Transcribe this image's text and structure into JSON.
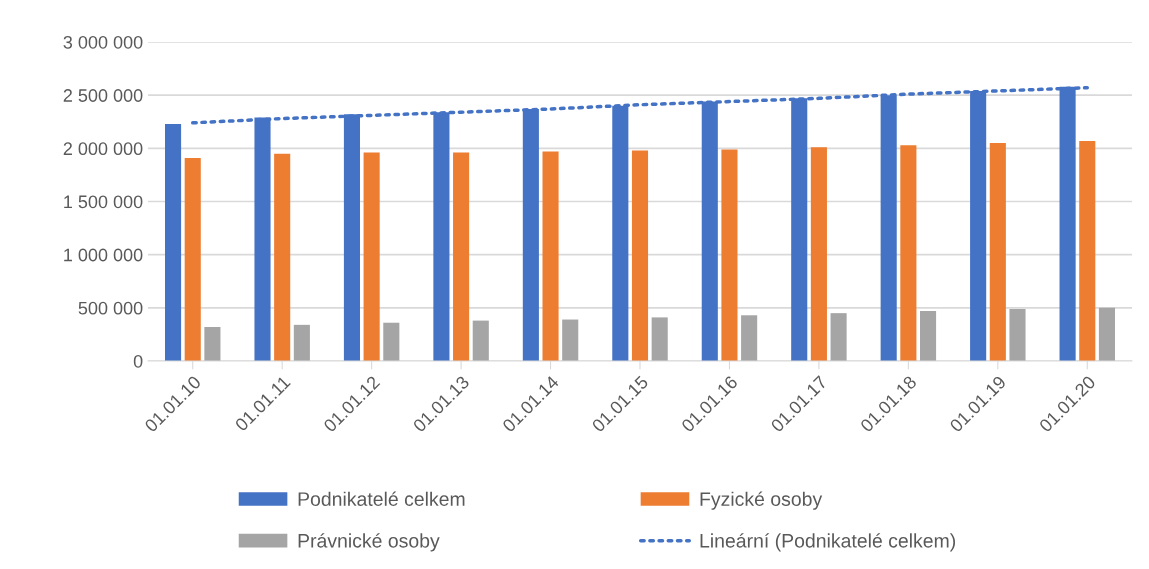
{
  "chart_data": {
    "type": "bar",
    "categories": [
      "01.01.10",
      "01.01.11",
      "01.01.12",
      "01.01.13",
      "01.01.14",
      "01.01.15",
      "01.01.16",
      "01.01.17",
      "01.01.18",
      "01.01.19",
      "01.01.20"
    ],
    "series": [
      {
        "name": "Podnikatelé celkem",
        "color": "#4472c4",
        "values": [
          2230000,
          2290000,
          2320000,
          2340000,
          2370000,
          2400000,
          2440000,
          2470000,
          2500000,
          2540000,
          2580000
        ]
      },
      {
        "name": "Fyzické osoby",
        "color": "#ed7d31",
        "values": [
          1910000,
          1950000,
          1960000,
          1960000,
          1970000,
          1980000,
          1990000,
          2010000,
          2030000,
          2050000,
          2070000
        ]
      },
      {
        "name": "Právnické osoby",
        "color": "#a5a5a5",
        "values": [
          320000,
          340000,
          360000,
          380000,
          390000,
          410000,
          430000,
          450000,
          470000,
          490000,
          500000
        ]
      },
      {
        "name": "Lineární (Podnikatelé celkem)",
        "type": "line",
        "line_style": "dotted",
        "color": "#4472c4",
        "values": [
          2240000,
          2280000,
          2310000,
          2340000,
          2370000,
          2410000,
          2440000,
          2470000,
          2510000,
          2540000,
          2570000
        ]
      }
    ],
    "ylim": [
      0,
      3000000
    ],
    "yticks": [
      {
        "value": 0,
        "label": "0"
      },
      {
        "value": 500000,
        "label": "500 000"
      },
      {
        "value": 1000000,
        "label": "1 000 000"
      },
      {
        "value": 1500000,
        "label": "1 500 000"
      },
      {
        "value": 2000000,
        "label": "2 000 000"
      },
      {
        "value": 2500000,
        "label": "2 500 000"
      },
      {
        "value": 3000000,
        "label": "3 000 000"
      }
    ],
    "grid": "y",
    "legend": "bottom"
  }
}
